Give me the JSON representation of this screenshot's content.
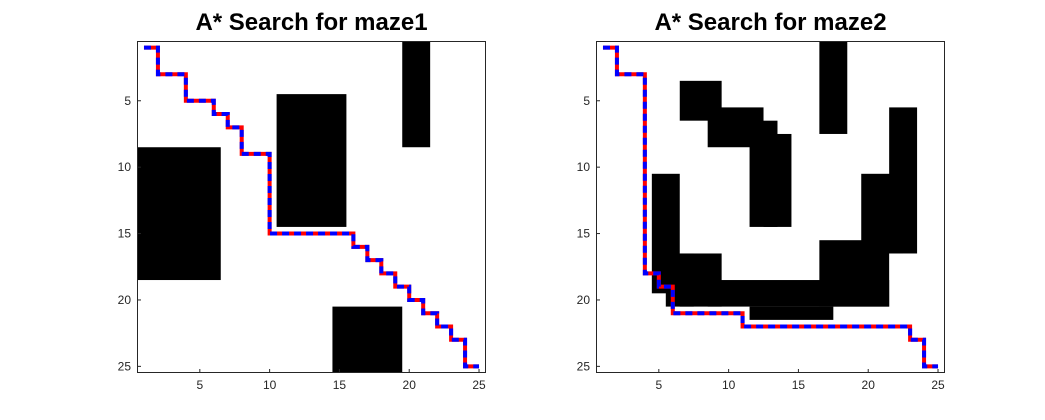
{
  "chart_data": [
    {
      "type": "heatmap",
      "title": "A* Search for maze1",
      "xlabel": "",
      "ylabel": "",
      "xlim": [
        0.5,
        25.5
      ],
      "ylim": [
        0.5,
        25.5
      ],
      "y_reversed": true,
      "xticks": [
        5,
        10,
        15,
        20,
        25
      ],
      "yticks": [
        5,
        10,
        15,
        20,
        25
      ],
      "grid_size": [
        25,
        25
      ],
      "colors": {
        "free": "#ffffff",
        "wall": "#000000",
        "path_a": "#ff0000",
        "path_b": "#0000ff"
      },
      "walls": [
        {
          "cols": [
            1,
            6
          ],
          "rows": [
            9,
            18
          ]
        },
        {
          "cols": [
            11,
            15
          ],
          "rows": [
            5,
            14
          ]
        },
        {
          "cols": [
            20,
            21
          ],
          "rows": [
            1,
            8
          ]
        },
        {
          "cols": [
            15,
            19
          ],
          "rows": [
            21,
            25
          ]
        }
      ],
      "path": [
        [
          1,
          1
        ],
        [
          2,
          1
        ],
        [
          2,
          2
        ],
        [
          2,
          3
        ],
        [
          3,
          3
        ],
        [
          4,
          3
        ],
        [
          4,
          4
        ],
        [
          4,
          5
        ],
        [
          5,
          5
        ],
        [
          6,
          5
        ],
        [
          6,
          6
        ],
        [
          7,
          6
        ],
        [
          7,
          7
        ],
        [
          8,
          7
        ],
        [
          8,
          8
        ],
        [
          8,
          9
        ],
        [
          9,
          9
        ],
        [
          10,
          9
        ],
        [
          10,
          10
        ],
        [
          10,
          11
        ],
        [
          10,
          12
        ],
        [
          10,
          13
        ],
        [
          10,
          14
        ],
        [
          10,
          15
        ],
        [
          11,
          15
        ],
        [
          12,
          15
        ],
        [
          13,
          15
        ],
        [
          14,
          15
        ],
        [
          15,
          15
        ],
        [
          16,
          15
        ],
        [
          16,
          16
        ],
        [
          17,
          16
        ],
        [
          17,
          17
        ],
        [
          18,
          17
        ],
        [
          18,
          18
        ],
        [
          19,
          18
        ],
        [
          19,
          19
        ],
        [
          20,
          19
        ],
        [
          20,
          20
        ],
        [
          21,
          20
        ],
        [
          21,
          21
        ],
        [
          22,
          21
        ],
        [
          22,
          22
        ],
        [
          23,
          22
        ],
        [
          23,
          23
        ],
        [
          24,
          23
        ],
        [
          24,
          24
        ],
        [
          24,
          25
        ],
        [
          25,
          25
        ]
      ]
    },
    {
      "type": "heatmap",
      "title": "A* Search for maze2",
      "xlabel": "",
      "ylabel": "",
      "xlim": [
        0.5,
        25.5
      ],
      "ylim": [
        0.5,
        25.5
      ],
      "y_reversed": true,
      "xticks": [
        5,
        10,
        15,
        20,
        25
      ],
      "yticks": [
        5,
        10,
        15,
        20,
        25
      ],
      "grid_size": [
        25,
        25
      ],
      "colors": {
        "free": "#ffffff",
        "wall": "#000000",
        "path_a": "#ff0000",
        "path_b": "#0000ff"
      },
      "walls": [
        {
          "cols": [
            17,
            18
          ],
          "rows": [
            1,
            7
          ]
        },
        {
          "cols": [
            7,
            9
          ],
          "rows": [
            4,
            6
          ]
        },
        {
          "cols": [
            9,
            12
          ],
          "rows": [
            6,
            8
          ]
        },
        {
          "cols": [
            12,
            13
          ],
          "rows": [
            7,
            14
          ]
        },
        {
          "cols": [
            13,
            14
          ],
          "rows": [
            8,
            14
          ]
        },
        {
          "cols": [
            5,
            6
          ],
          "rows": [
            11,
            19
          ]
        },
        {
          "cols": [
            6,
            7
          ],
          "rows": [
            17,
            20
          ]
        },
        {
          "cols": [
            7,
            9
          ],
          "rows": [
            17,
            20
          ]
        },
        {
          "cols": [
            9,
            21
          ],
          "rows": [
            19,
            20
          ]
        },
        {
          "cols": [
            12,
            17
          ],
          "rows": [
            21,
            21
          ]
        },
        {
          "cols": [
            17,
            21
          ],
          "rows": [
            16,
            20
          ]
        },
        {
          "cols": [
            20,
            22
          ],
          "rows": [
            11,
            16
          ]
        },
        {
          "cols": [
            22,
            23
          ],
          "rows": [
            6,
            16
          ]
        }
      ],
      "path": [
        [
          1,
          1
        ],
        [
          2,
          1
        ],
        [
          2,
          2
        ],
        [
          2,
          3
        ],
        [
          3,
          3
        ],
        [
          4,
          3
        ],
        [
          4,
          4
        ],
        [
          4,
          5
        ],
        [
          4,
          6
        ],
        [
          4,
          7
        ],
        [
          4,
          8
        ],
        [
          4,
          9
        ],
        [
          4,
          10
        ],
        [
          4,
          11
        ],
        [
          4,
          12
        ],
        [
          4,
          13
        ],
        [
          4,
          14
        ],
        [
          4,
          15
        ],
        [
          4,
          16
        ],
        [
          4,
          17
        ],
        [
          4,
          18
        ],
        [
          5,
          18
        ],
        [
          5,
          19
        ],
        [
          6,
          19
        ],
        [
          6,
          20
        ],
        [
          6,
          21
        ],
        [
          7,
          21
        ],
        [
          8,
          21
        ],
        [
          9,
          21
        ],
        [
          10,
          21
        ],
        [
          11,
          21
        ],
        [
          11,
          22
        ],
        [
          12,
          22
        ],
        [
          13,
          22
        ],
        [
          14,
          22
        ],
        [
          15,
          22
        ],
        [
          16,
          22
        ],
        [
          17,
          22
        ],
        [
          18,
          22
        ],
        [
          19,
          22
        ],
        [
          20,
          22
        ],
        [
          21,
          22
        ],
        [
          22,
          22
        ],
        [
          23,
          22
        ],
        [
          23,
          23
        ],
        [
          24,
          23
        ],
        [
          24,
          24
        ],
        [
          24,
          25
        ],
        [
          25,
          25
        ]
      ]
    }
  ]
}
